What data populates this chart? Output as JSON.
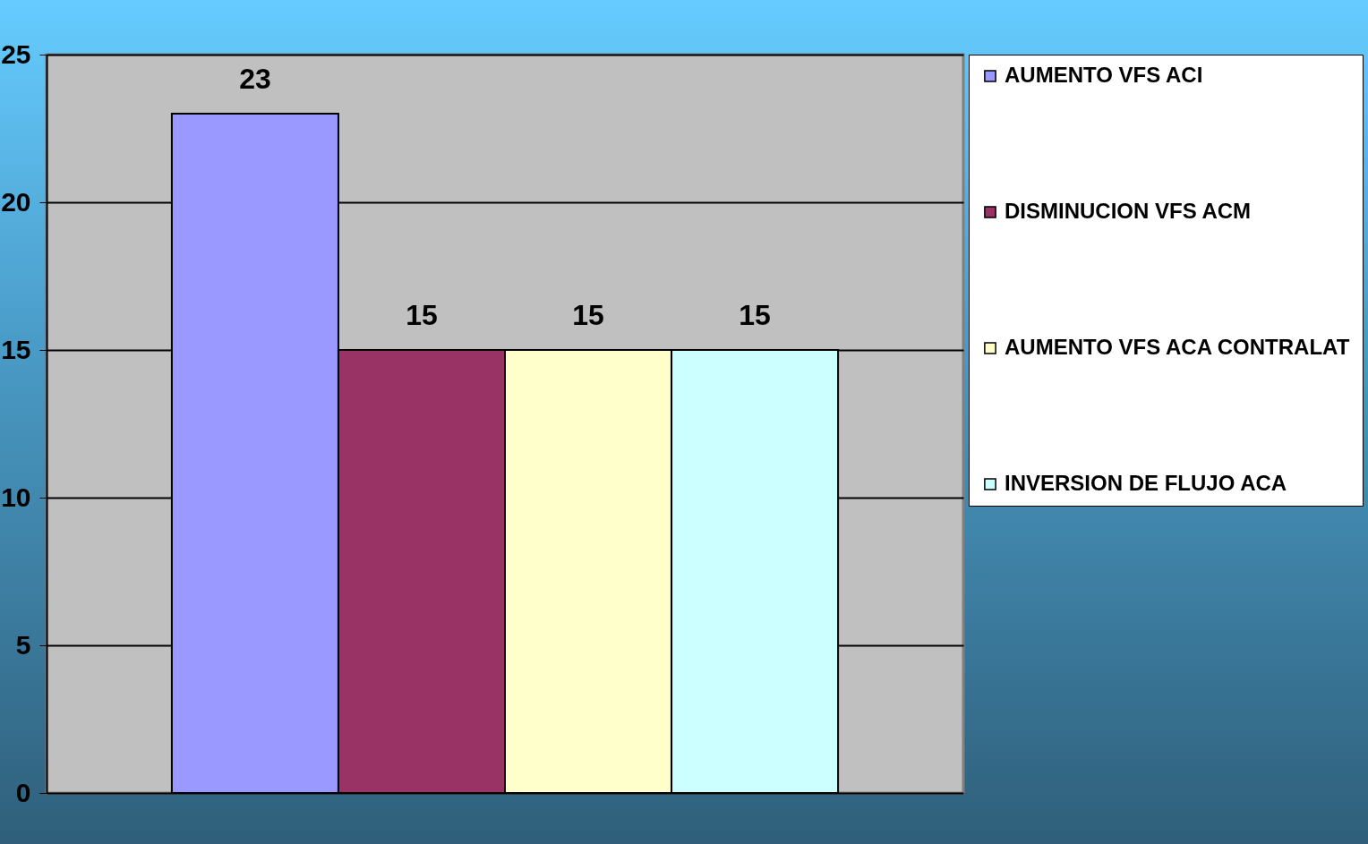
{
  "chart_data": {
    "type": "bar",
    "categories": [
      null
    ],
    "series": [
      {
        "name": "AUMENTO VFS ACI",
        "color": "#9999ff",
        "values": [
          23
        ]
      },
      {
        "name": "DISMINUCION  VFS ACM",
        "color": "#993366",
        "values": [
          15
        ]
      },
      {
        "name": "AUMENTO VFS ACA CONTRALAT",
        "color": "#ffffcc",
        "values": [
          15
        ]
      },
      {
        "name": "INVERSION DE FLUJO ACA",
        "color": "#ccffff",
        "values": [
          15
        ]
      }
    ],
    "ylim": [
      0,
      25
    ],
    "yticks": [
      0,
      5,
      10,
      15,
      20,
      25
    ],
    "grid": "y",
    "legend": "right",
    "data_labels": true,
    "tick_labels": "y"
  }
}
